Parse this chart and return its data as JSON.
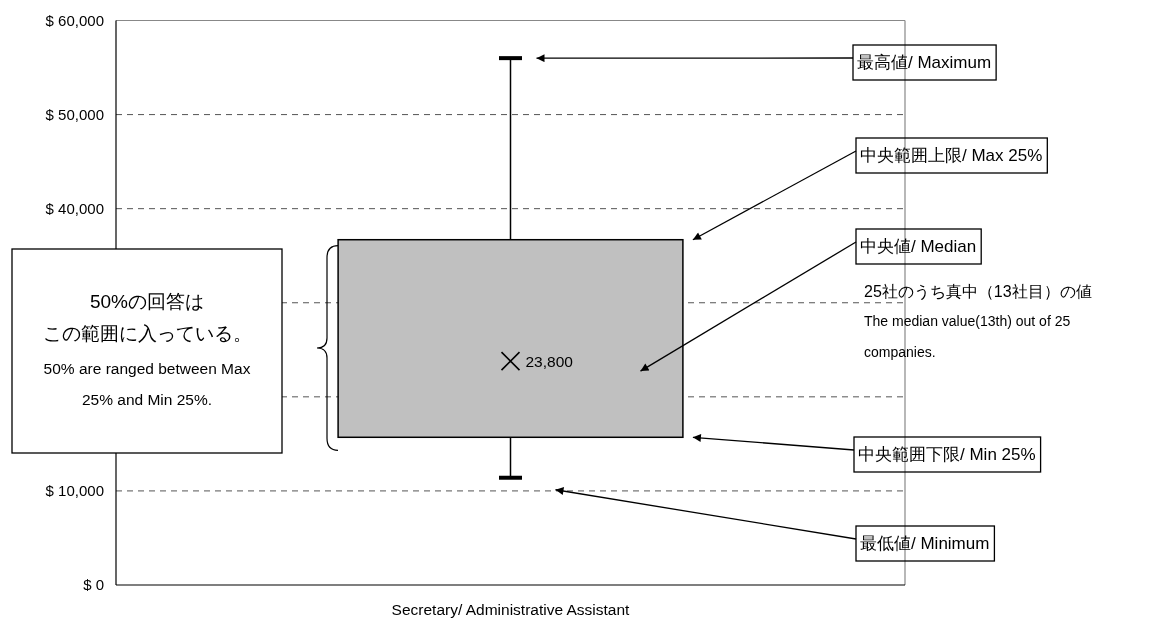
{
  "chart_data": {
    "type": "box",
    "categories": [
      "Secretary/ Administrative Assistant"
    ],
    "boxes": [
      {
        "low": 11400,
        "q1": 15700,
        "median": 23800,
        "q3": 36700,
        "high": 56000
      }
    ],
    "color": "#c0c0c0",
    "ylim": [
      0,
      60000
    ],
    "yticks": [
      {
        "value": 0,
        "label": "$ 0"
      },
      {
        "value": 10000,
        "label": "$ 10,000"
      },
      {
        "value": 20000,
        "label": null
      },
      {
        "value": 30000,
        "label": null
      },
      {
        "value": 40000,
        "label": "$ 40,000"
      },
      {
        "value": 50000,
        "label": "$ 50,000"
      },
      {
        "value": 60000,
        "label": "$ 60,000"
      }
    ],
    "grid": "y",
    "annotations": [
      "最高値/ Maximum",
      "中央範囲上限/ Max 25%",
      "中央値/ Median",
      "25社のうち真中（13社目）の値",
      "The median value(13th) out of 25 companies.",
      "中央範囲下限/ Min 25%",
      "最低値/ Minimum",
      "50%の回答は",
      "この範囲に入っている。",
      "50% are ranged between Max 25% and Min 25%.",
      {
        "text": "23,800",
        "x": "Secretary/ Administrative Assistant",
        "y": 23800
      }
    ]
  }
}
